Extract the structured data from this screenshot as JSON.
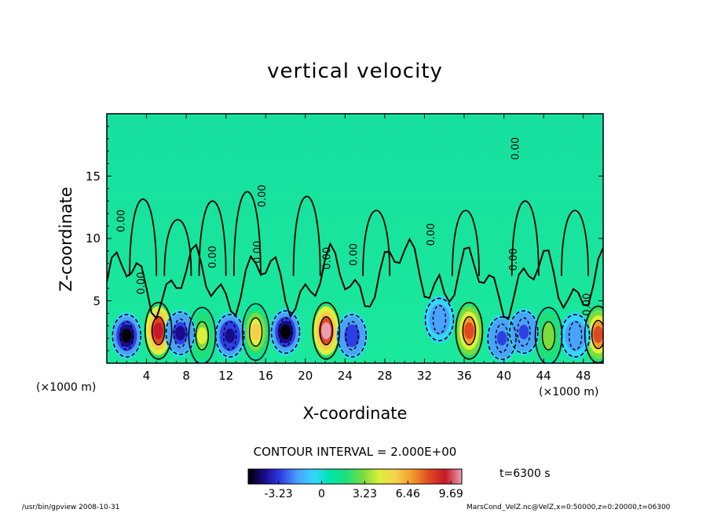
{
  "chart_data": {
    "type": "heatmap",
    "title": "vertical velocity",
    "xlabel": "X-coordinate",
    "ylabel": "Z-coordinate",
    "x_unit_left": "(×1000 m)",
    "x_unit_right": "(×1000 m)",
    "xlim": [
      0,
      50
    ],
    "ylim": [
      0,
      20
    ],
    "x_ticks": [
      "4",
      "8",
      "12",
      "16",
      "20",
      "24",
      "28",
      "32",
      "36",
      "40",
      "44",
      "48"
    ],
    "x_tick_values": [
      4,
      8,
      12,
      16,
      20,
      24,
      28,
      32,
      36,
      40,
      44,
      48
    ],
    "y_ticks": [
      "5",
      "10",
      "15"
    ],
    "y_tick_values": [
      5,
      10,
      15
    ],
    "contour_interval_text": "CONTOUR INTERVAL = 2.000E+00",
    "contour_labels": [
      "0.00",
      "0.00",
      "0.00",
      "0.00",
      "0.00",
      "0.00",
      "0.00",
      "0.00",
      "0.00",
      "0.00",
      "0.00",
      "0.00",
      "0.00",
      "0.00"
    ],
    "colorbar": {
      "labels": [
        "-3.23",
        "0",
        "3.23",
        "6.46",
        "9.69"
      ],
      "values": [
        -3.23,
        0,
        3.23,
        6.46,
        9.69
      ],
      "range": [
        -5.5,
        10.5
      ],
      "colors": [
        "#000000",
        "#1a0a8c",
        "#2f3fe6",
        "#4aa2ff",
        "#33d6ff",
        "#00e6a8",
        "#1fe07a",
        "#7bdc3c",
        "#dff03a",
        "#f6cf4a",
        "#f39a2c",
        "#e0491f",
        "#c7192a",
        "#e8a0b0"
      ]
    },
    "time_text": "t=6300 s",
    "features": [
      {
        "kind": "updraft",
        "x": 5.2,
        "z": 2.6,
        "peak": 9.5
      },
      {
        "kind": "updraft",
        "x": 9.6,
        "z": 2.2,
        "peak": 4.0
      },
      {
        "kind": "updraft",
        "x": 15.0,
        "z": 2.5,
        "peak": 6.0
      },
      {
        "kind": "updraft",
        "x": 22.1,
        "z": 2.6,
        "peak": 10.0
      },
      {
        "kind": "updraft",
        "x": 36.5,
        "z": 2.6,
        "peak": 8.0
      },
      {
        "kind": "updraft",
        "x": 44.5,
        "z": 2.2,
        "peak": 3.5
      },
      {
        "kind": "updraft",
        "x": 49.5,
        "z": 2.3,
        "peak": 8.0
      },
      {
        "kind": "downdraft",
        "x": 2.0,
        "z": 2.2,
        "peak": -5.0
      },
      {
        "kind": "downdraft",
        "x": 7.4,
        "z": 2.4,
        "peak": -3.8
      },
      {
        "kind": "downdraft",
        "x": 12.4,
        "z": 2.2,
        "peak": -4.5
      },
      {
        "kind": "downdraft",
        "x": 18.0,
        "z": 2.5,
        "peak": -5.0
      },
      {
        "kind": "downdraft",
        "x": 24.7,
        "z": 2.2,
        "peak": -3.5
      },
      {
        "kind": "downdraft",
        "x": 33.5,
        "z": 3.5,
        "peak": -2.0
      },
      {
        "kind": "downdraft",
        "x": 39.8,
        "z": 2.0,
        "peak": -3.0
      },
      {
        "kind": "downdraft",
        "x": 42.0,
        "z": 2.5,
        "peak": -3.0
      },
      {
        "kind": "downdraft",
        "x": 47.2,
        "z": 2.2,
        "peak": -2.0
      }
    ]
  },
  "footer": {
    "left": "/usr/bin/gpview   2008-10-31",
    "right": "MarsCond_VelZ.nc@VelZ,x=0:50000,z=0:20000,t=06300"
  }
}
